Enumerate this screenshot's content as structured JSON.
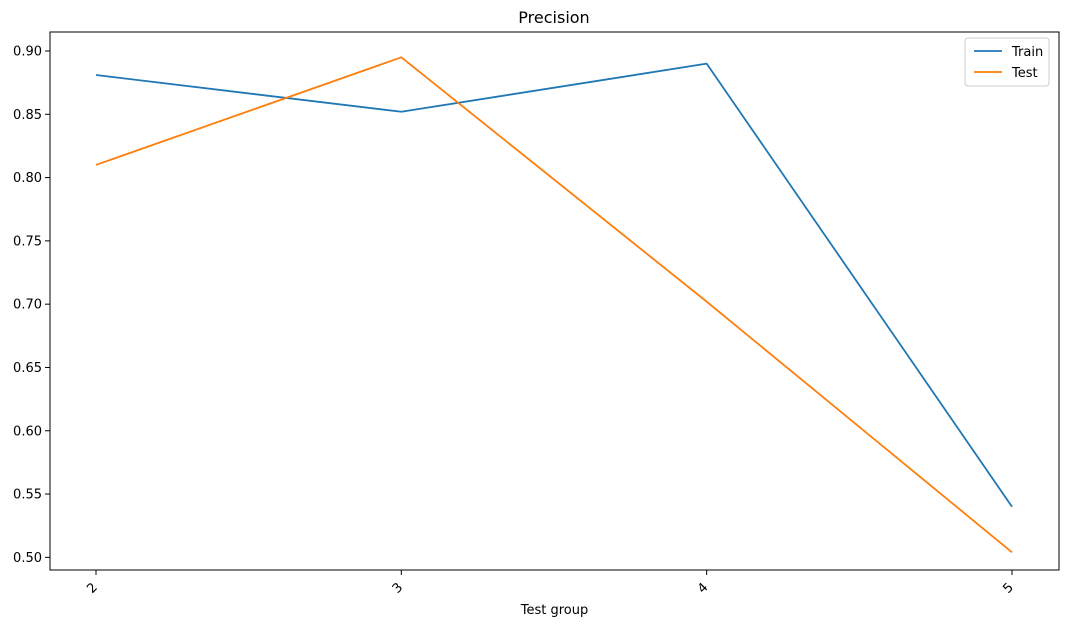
{
  "chart_data": {
    "type": "line",
    "title": "Precision",
    "xlabel": "Test group",
    "ylabel": "",
    "categories": [
      "2",
      "3",
      "4",
      "5"
    ],
    "ylim": [
      0.49,
      0.915
    ],
    "yticks": [
      0.5,
      0.55,
      0.6,
      0.65,
      0.7,
      0.75,
      0.8,
      0.85,
      0.9
    ],
    "ytick_labels": [
      "0.50",
      "0.55",
      "0.60",
      "0.65",
      "0.70",
      "0.75",
      "0.80",
      "0.85",
      "0.90"
    ],
    "grid": false,
    "legend_position": "top-right",
    "series": [
      {
        "name": "Train",
        "color": "#1f77b4",
        "values": [
          0.881,
          0.852,
          0.89,
          0.54
        ]
      },
      {
        "name": "Test",
        "color": "#ff7f0e",
        "values": [
          0.81,
          0.895,
          0.702,
          0.504
        ]
      }
    ]
  }
}
